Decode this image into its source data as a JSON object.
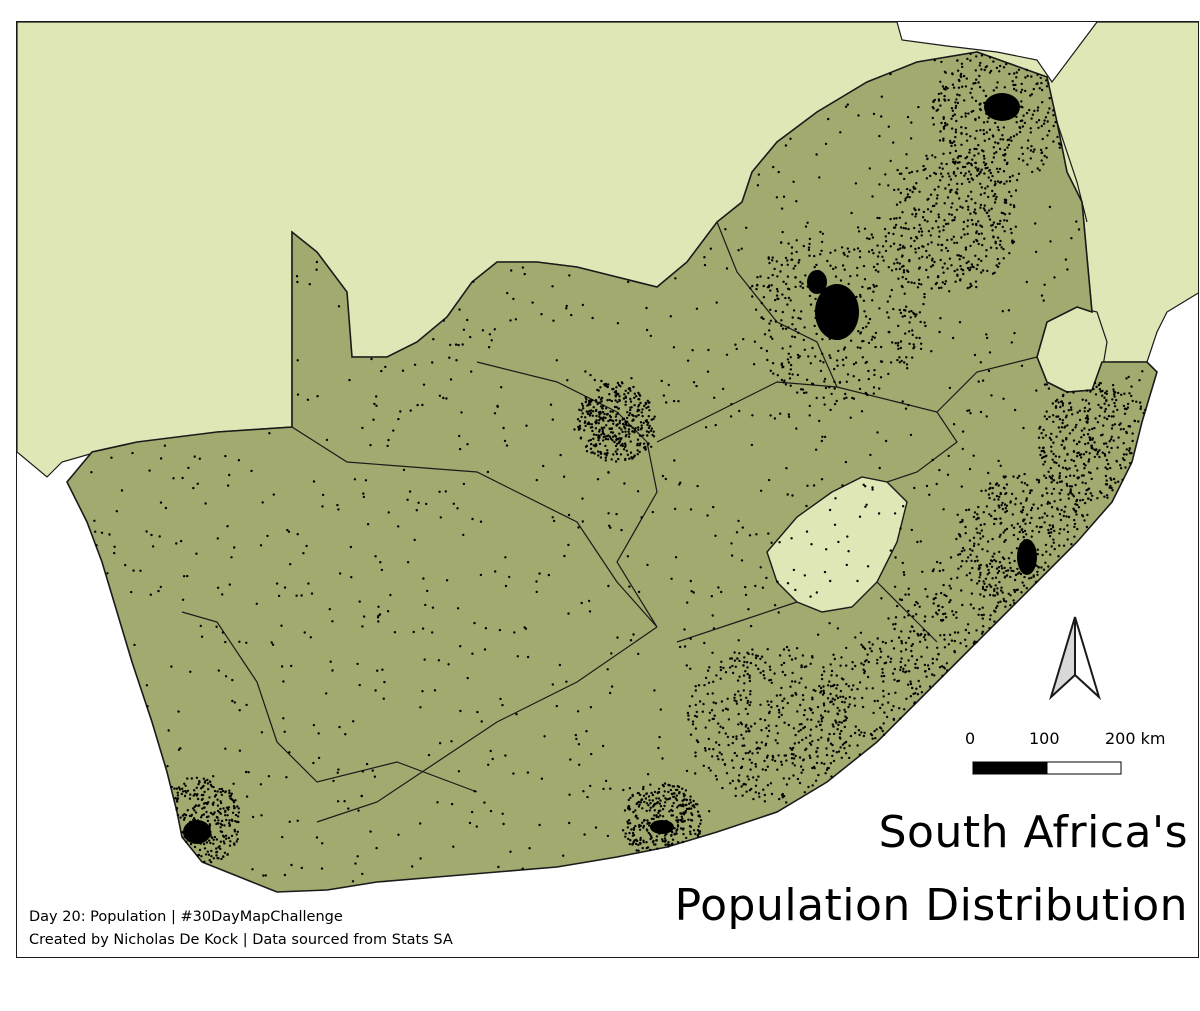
{
  "map": {
    "title_line1": "South Africa's",
    "title_line2": "Population Distribution",
    "credit_line1": "Day 20: Population | #30DayMapChallenge",
    "credit_line2": "Created by Nicholas De Kock | Data sourced from Stats SA",
    "scale": {
      "label_0": "0",
      "label_100": "100",
      "label_200": "200 km"
    },
    "colors": {
      "land_south_africa": "#a3aa6f",
      "neighbors": "#dfe7b6",
      "ocean": "#ffffff",
      "dots": "#000000",
      "borders": "#1a1a1a"
    },
    "north_arrow_icon": "north-arrow-icon"
  }
}
